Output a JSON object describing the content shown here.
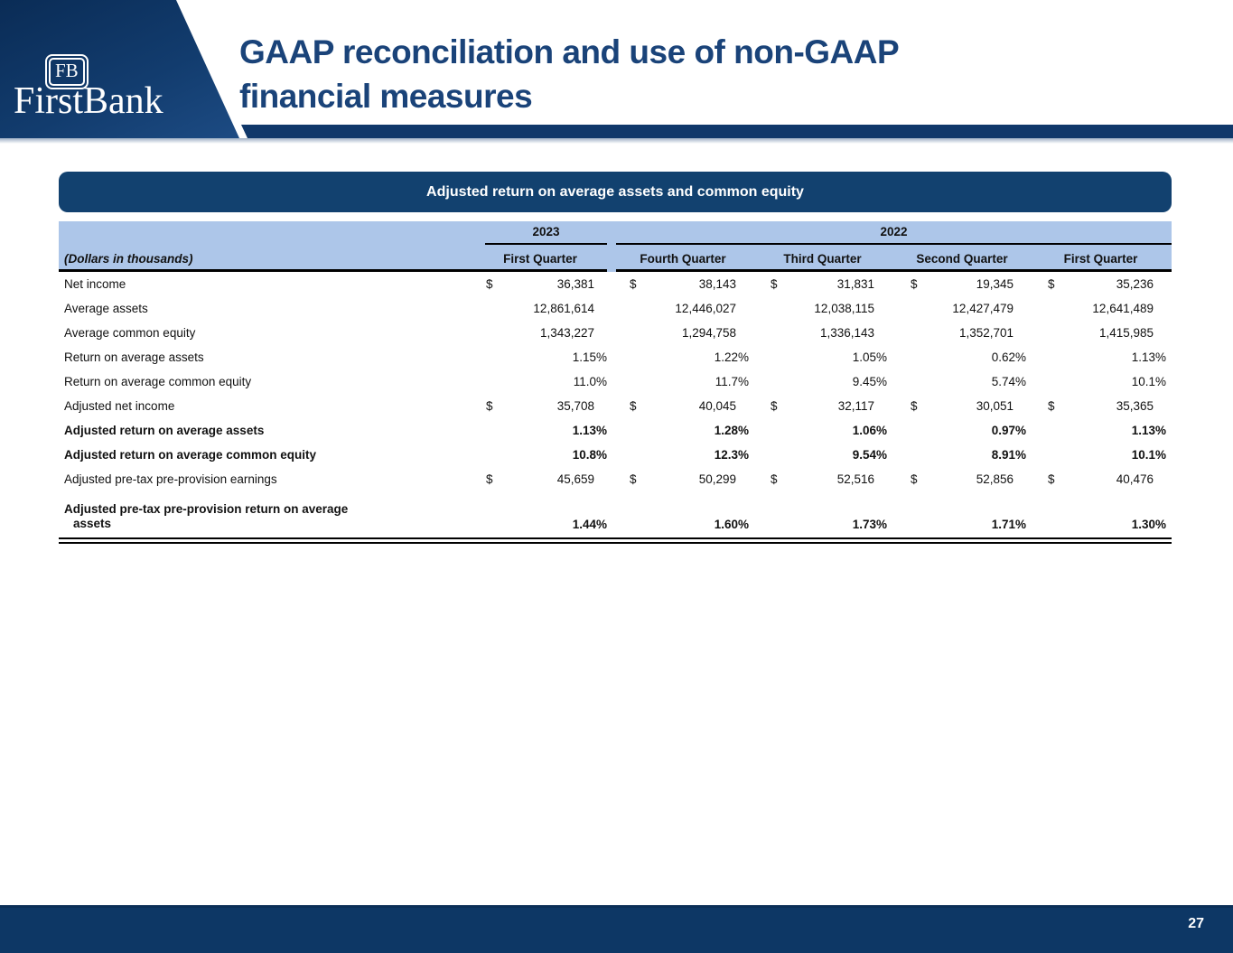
{
  "slide": {
    "logo": {
      "mark": "FB",
      "name": "FirstBank"
    },
    "title_line1": "GAAP reconciliation and use of non-GAAP",
    "title_line2": "financial measures",
    "page_number": "27"
  },
  "table": {
    "title": "Adjusted return on average assets and common equity",
    "note": "(Dollars in thousands)",
    "years": [
      "2023",
      "2022"
    ],
    "quarters": [
      "First Quarter",
      "Fourth Quarter",
      "Third Quarter",
      "Second Quarter",
      "First Quarter"
    ],
    "rows": [
      {
        "label": "Net income",
        "dollar": "$",
        "values": [
          "36,381",
          "38,143",
          "31,831",
          "19,345",
          "35,236"
        ]
      },
      {
        "label": "Average assets",
        "dollar": "",
        "values": [
          "12,861,614",
          "12,446,027",
          "12,038,115",
          "12,427,479",
          "12,641,489"
        ]
      },
      {
        "label": "Average common equity",
        "dollar": "",
        "values": [
          "1,343,227",
          "1,294,758",
          "1,336,143",
          "1,352,701",
          "1,415,985"
        ]
      },
      {
        "label": "Return on average assets",
        "dollar": "",
        "values": [
          "1.15%",
          "1.22%",
          "1.05%",
          "0.62%",
          "1.13%"
        ]
      },
      {
        "label": "Return on average common equity",
        "dollar": "",
        "values": [
          "11.0%",
          "11.7%",
          "9.45%",
          "5.74%",
          "10.1%"
        ]
      },
      {
        "label": "Adjusted net income",
        "dollar": "$",
        "values": [
          "35,708",
          "40,045",
          "32,117",
          "30,051",
          "35,365"
        ]
      },
      {
        "label": "Adjusted return on average assets",
        "dollar": "",
        "values": [
          "1.13%",
          "1.28%",
          "1.06%",
          "0.97%",
          "1.13%"
        ]
      },
      {
        "label": "Adjusted return on average common equity",
        "dollar": "",
        "values": [
          "10.8%",
          "12.3%",
          "9.54%",
          "8.91%",
          "10.1%"
        ]
      },
      {
        "label": "Adjusted pre-tax pre-provision earnings",
        "dollar": "$",
        "values": [
          "45,659",
          "50,299",
          "52,516",
          "52,856",
          "40,476"
        ]
      },
      {
        "label": "Adjusted pre-tax pre-provision return on average",
        "label2": "assets",
        "dollar": "",
        "values": [
          "1.44%",
          "1.60%",
          "1.73%",
          "1.71%",
          "1.30%"
        ]
      }
    ]
  },
  "colors": {
    "navy_dark": "#0a2c56",
    "navy_band": "#10386a",
    "navy_light": "#1e4d86",
    "title_text": "#1a4379",
    "table_title_bg": "#12416f",
    "table_header_bg": "#adc6e9",
    "footer_bg": "#0d3765",
    "header_rule": "#9fb0c6"
  }
}
